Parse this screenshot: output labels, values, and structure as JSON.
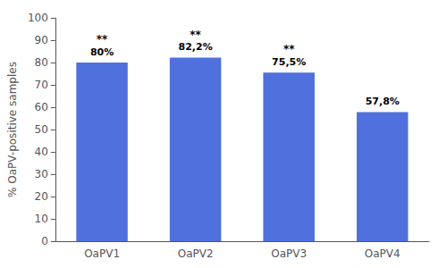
{
  "chart_data": {
    "type": "bar",
    "categories": [
      "OaPV1",
      "OaPV2",
      "OaPV3",
      "OaPV4"
    ],
    "values": [
      80.0,
      82.2,
      75.5,
      57.8
    ],
    "value_labels": [
      "80%",
      "82,2%",
      "75,5%",
      "57,8%"
    ],
    "annotations": [
      {
        "category": "OaPV1",
        "text": "**"
      },
      {
        "category": "OaPV2",
        "text": "**"
      },
      {
        "category": "OaPV3",
        "text": "**"
      }
    ],
    "ylabel": "% OaPV-positive samples",
    "ylim": [
      0,
      100
    ],
    "yticks": [
      0,
      10,
      20,
      30,
      40,
      50,
      60,
      70,
      80,
      90,
      100
    ],
    "data_labels": true,
    "grid": false
  }
}
